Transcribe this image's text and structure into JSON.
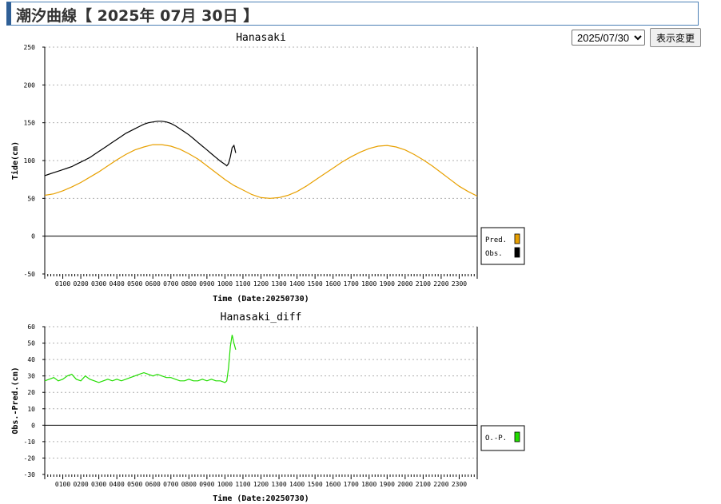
{
  "page": {
    "title": "潮汐曲線【 2025年 07月 30日 】",
    "date_select": {
      "value": "2025/07/30",
      "options": [
        "2025/07/30"
      ]
    },
    "display_button": "表示変更"
  },
  "colors": {
    "pred": "#e8a000",
    "obs": "#000000",
    "diff": "#22dd00",
    "grid": "#b0b0b0",
    "border": "#4a7fb5"
  },
  "chart_data": [
    {
      "type": "line",
      "title": "Hanasaki",
      "xlabel": "Time (Date:20250730)",
      "ylabel": "Tide(cm)",
      "ylim": [
        -50,
        250
      ],
      "yticks": [
        -50,
        0,
        50,
        100,
        150,
        200,
        250
      ],
      "xlim": [
        0,
        24
      ],
      "xtick_labels": [
        "0100",
        "0200",
        "0300",
        "0400",
        "0500",
        "0600",
        "0700",
        "0800",
        "0900",
        "1000",
        "1100",
        "1200",
        "1300",
        "1400",
        "1500",
        "1600",
        "1700",
        "1800",
        "1900",
        "2000",
        "2100",
        "2200",
        "2300"
      ],
      "grid": true,
      "legend_position": "right",
      "series": [
        {
          "name": "Pred.",
          "x": [
            0,
            0.5,
            1,
            1.5,
            2,
            2.5,
            3,
            3.5,
            4,
            4.5,
            5,
            5.5,
            6,
            6.5,
            7,
            7.5,
            8,
            8.5,
            9,
            9.5,
            10,
            10.5,
            11,
            11.5,
            12,
            12.5,
            13,
            13.5,
            14,
            14.5,
            15,
            15.5,
            16,
            16.5,
            17,
            17.5,
            18,
            18.5,
            19,
            19.5,
            20,
            20.5,
            21,
            21.5,
            22,
            22.5,
            23,
            23.5,
            24
          ],
          "values": [
            54,
            56,
            60,
            65,
            71,
            78,
            85,
            93,
            101,
            108,
            114,
            118,
            121,
            121,
            119,
            115,
            109,
            102,
            93,
            84,
            75,
            67,
            61,
            55,
            51,
            50,
            51,
            54,
            59,
            66,
            74,
            82,
            90,
            98,
            105,
            111,
            116,
            119,
            120,
            118,
            114,
            108,
            101,
            93,
            84,
            75,
            66,
            59,
            53
          ]
        },
        {
          "name": "Obs.",
          "x": [
            0,
            0.25,
            0.5,
            0.75,
            1,
            1.25,
            1.5,
            1.75,
            2,
            2.25,
            2.5,
            2.75,
            3,
            3.25,
            3.5,
            3.75,
            4,
            4.25,
            4.5,
            4.75,
            5,
            5.25,
            5.5,
            5.75,
            6,
            6.25,
            6.5,
            6.75,
            7,
            7.25,
            7.5,
            7.75,
            8,
            8.25,
            8.5,
            8.75,
            9,
            9.25,
            9.5,
            9.75,
            10,
            10.1,
            10.2,
            10.3,
            10.4,
            10.5,
            10.6
          ],
          "values": [
            80,
            82,
            84,
            86,
            88,
            90,
            92,
            95,
            98,
            101,
            104,
            108,
            112,
            116,
            120,
            124,
            128,
            132,
            136,
            139,
            142,
            145,
            148,
            150,
            151,
            152,
            152,
            151,
            149,
            146,
            142,
            138,
            134,
            129,
            124,
            119,
            114,
            109,
            104,
            99,
            95,
            93,
            96,
            105,
            117,
            120,
            110
          ]
        }
      ]
    },
    {
      "type": "line",
      "title": "Hanasaki_diff",
      "xlabel": "Time (Date:20250730)",
      "ylabel": "Obs.-Pred.(cm)",
      "ylim": [
        -30,
        60
      ],
      "yticks": [
        -30,
        -20,
        -10,
        0,
        10,
        20,
        30,
        40,
        50,
        60
      ],
      "xlim": [
        0,
        24
      ],
      "xtick_labels": [
        "0100",
        "0200",
        "0300",
        "0400",
        "0500",
        "0600",
        "0700",
        "0800",
        "0900",
        "1000",
        "1100",
        "1200",
        "1300",
        "1400",
        "1500",
        "1600",
        "1700",
        "1800",
        "1900",
        "2000",
        "2100",
        "2200",
        "2300"
      ],
      "grid": true,
      "legend_position": "right",
      "series": [
        {
          "name": "O.-P.",
          "x": [
            0,
            0.25,
            0.5,
            0.75,
            1,
            1.25,
            1.5,
            1.75,
            2,
            2.25,
            2.5,
            2.75,
            3,
            3.25,
            3.5,
            3.75,
            4,
            4.25,
            4.5,
            4.75,
            5,
            5.25,
            5.5,
            5.75,
            6,
            6.25,
            6.5,
            6.75,
            7,
            7.25,
            7.5,
            7.75,
            8,
            8.25,
            8.5,
            8.75,
            9,
            9.25,
            9.5,
            9.75,
            10,
            10.1,
            10.2,
            10.3,
            10.4,
            10.5,
            10.6
          ],
          "values": [
            27,
            28,
            29,
            27,
            28,
            30,
            31,
            28,
            27,
            30,
            28,
            27,
            26,
            27,
            28,
            27,
            28,
            27,
            28,
            29,
            30,
            31,
            32,
            31,
            30,
            31,
            30,
            29,
            29,
            28,
            27,
            27,
            28,
            27,
            27,
            28,
            27,
            28,
            27,
            27,
            26,
            27,
            35,
            48,
            55,
            50,
            46
          ]
        }
      ]
    }
  ]
}
